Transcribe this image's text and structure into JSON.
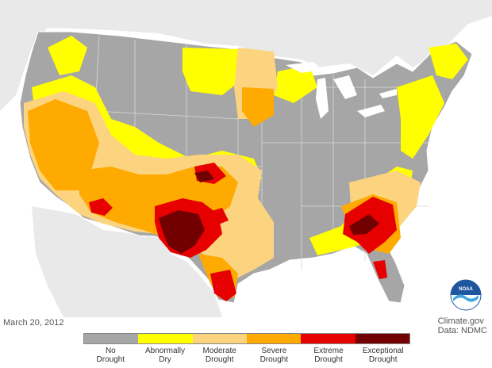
{
  "date": "March 20, 2012",
  "credit": {
    "line1": "Climate.gov",
    "line2": "Data: NDMC"
  },
  "logo_text": "NOAA",
  "legend": [
    {
      "line1": "No",
      "line2": "Drought",
      "color": "#a6a6a6"
    },
    {
      "line1": "Abnormally",
      "line2": "Dry",
      "color": "#ffff00"
    },
    {
      "line1": "Moderate",
      "line2": "Drought",
      "color": "#fcd37f"
    },
    {
      "line1": "Severe",
      "line2": "Drought",
      "color": "#ffaa00"
    },
    {
      "line1": "Extreme",
      "line2": "Drought",
      "color": "#e60000"
    },
    {
      "line1": "Exceptional",
      "line2": "Drought",
      "color": "#730000"
    }
  ]
}
